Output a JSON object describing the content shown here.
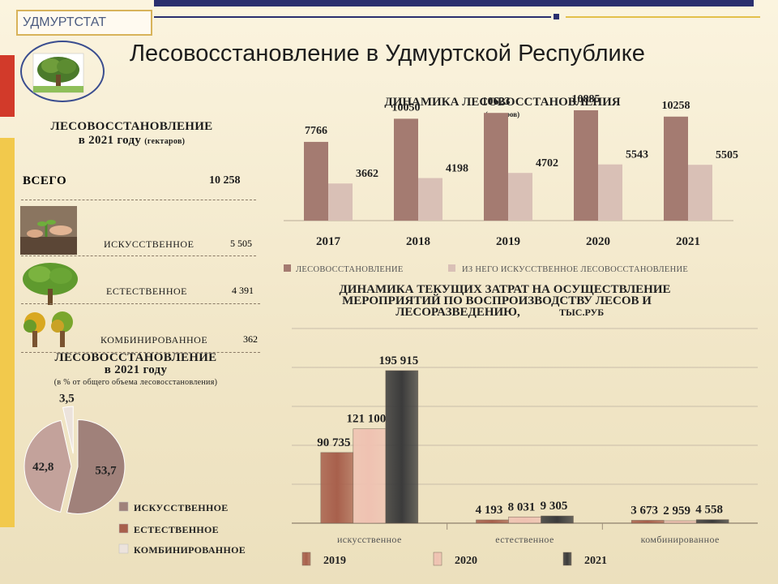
{
  "brand": "УДМУРТСТАТ",
  "title": "Лесовосстановление в Удмуртской Республике",
  "left": {
    "heading_line1": "ЛЕСОВОССТАНОВЛЕНИЕ",
    "heading_line2": "в 2021 году",
    "heading_unit": "(гектаров)",
    "rows": [
      {
        "label": "ВСЕГО",
        "value": "10 258"
      },
      {
        "label": "ИСКУССТВЕННОЕ",
        "value": "5 505"
      },
      {
        "label": "ЕСТЕСТВЕННОЕ",
        "value": "4 391"
      },
      {
        "label": "КОМБИНИРОВАННОЕ",
        "value": "362"
      }
    ]
  },
  "colors": {
    "bar_main": "#a47b71",
    "bar_light": "#d9c0b6",
    "pie_art": "#a0817a",
    "pie_nat": "#c3a29b",
    "pie_comb": "#ece3dc",
    "b2019": "#a8604c",
    "b2020": "#efc2b2",
    "b2021": "#3b3b3b"
  },
  "icons": [
    "tree-logo-icon",
    "seedling-planting-icon",
    "tree-icon",
    "two-trees-icon"
  ],
  "chart_data": [
    {
      "type": "bar",
      "title": "ДИНАМИКА ЛЕСОВОССТАНОВЛЕНИЯ",
      "subtitle": "(гектаров)",
      "categories": [
        "2017",
        "2018",
        "2019",
        "2020",
        "2021"
      ],
      "series": [
        {
          "name": "ЛЕСОВОССТАНОВЛЕНИЕ",
          "values": [
            7766,
            10050,
            10623,
            10885,
            10258
          ]
        },
        {
          "name": "ИЗ НЕГО ИСКУССТВЕННОЕ  ЛЕСОВОССТАНОВЛЕНИЕ",
          "values": [
            3662,
            4198,
            4702,
            5543,
            5505
          ]
        }
      ],
      "labels": [
        [
          "7766",
          "10050",
          "10623",
          "10885",
          "10258"
        ],
        [
          "3662",
          "4198",
          "4702",
          "5543",
          "5505"
        ]
      ],
      "ylim": [
        0,
        12000
      ]
    },
    {
      "type": "pie",
      "title_line1": "ЛЕСОВОССТАНОВЛЕНИЕ",
      "title_line2": "в 2021 году",
      "subtitle": "(в % от общего объема лесовосстановления)",
      "categories": [
        "ИСКУССТВЕННОЕ",
        "ЕСТЕСТВЕННОЕ",
        "КОМБИНИРОВАННОЕ"
      ],
      "values": [
        53.7,
        42.8,
        3.5
      ],
      "labels": [
        "53,7",
        "42,8",
        "3,5"
      ]
    },
    {
      "type": "bar",
      "title_line1": "ДИНАМИКА ТЕКУЩИХ ЗАТРАТ НА ОСУЩЕСТВЛЕНИЕ",
      "title_line2": "МЕРОПРИЯТИЙ ПО ВОСПРОИЗВОДСТВУ ЛЕСОВ И",
      "title_line3": "ЛЕСОРАЗВЕДЕНИЮ,",
      "title_unit": "ТЫС.РУБ",
      "categories": [
        "искусственное",
        "естественное",
        "комбинированное"
      ],
      "series": [
        {
          "name": "2019",
          "values": [
            90735,
            4193,
            3673
          ]
        },
        {
          "name": "2020",
          "values": [
            121100,
            8031,
            2959
          ]
        },
        {
          "name": "2021",
          "values": [
            195915,
            9305,
            4558
          ]
        }
      ],
      "labels": [
        [
          "90 735",
          "4 193",
          "3 673"
        ],
        [
          "121 100",
          "8 031",
          "2 959"
        ],
        [
          "195 915",
          "9 305",
          "4 558"
        ]
      ],
      "ylim": [
        0,
        250000
      ],
      "grid": true
    }
  ]
}
